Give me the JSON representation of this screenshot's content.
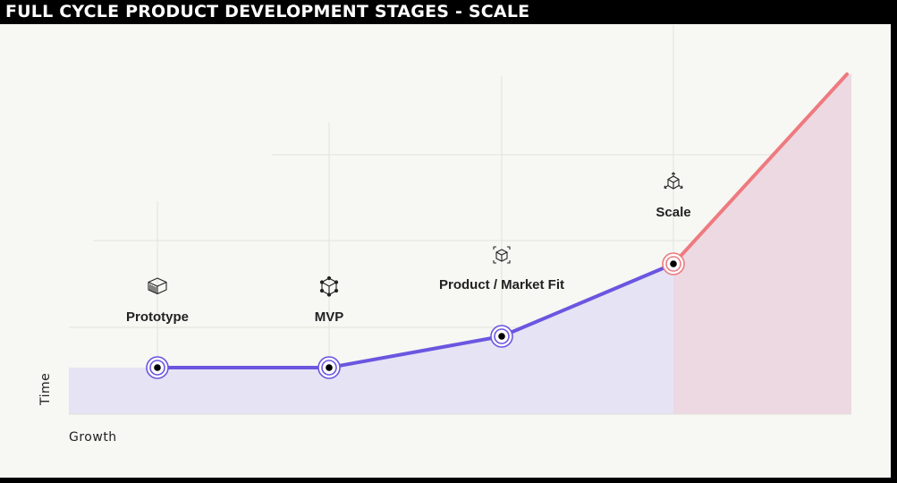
{
  "header": {
    "title": "FULL CYCLE PRODUCT DEVELOPMENT STAGES - SCALE"
  },
  "axes": {
    "x_label": "Growth",
    "y_label": "Time"
  },
  "stages": [
    {
      "label": "Prototype",
      "icon": "stacked-layers-icon"
    },
    {
      "label": "MVP",
      "icon": "cube-nodes-icon"
    },
    {
      "label": "Product / Market Fit",
      "icon": "framed-cube-icon"
    },
    {
      "label": "Scale",
      "icon": "cube-arrows-icon"
    }
  ],
  "colors": {
    "background": "#f7f7f3",
    "purple_line": "#6a56e0",
    "purple_fill": "#e6e3f4",
    "red_line": "#ee7a7f",
    "red_fill": "#ecd9e2",
    "marker_purple": "#6a56e0",
    "marker_red": "#ee7a7f"
  }
}
